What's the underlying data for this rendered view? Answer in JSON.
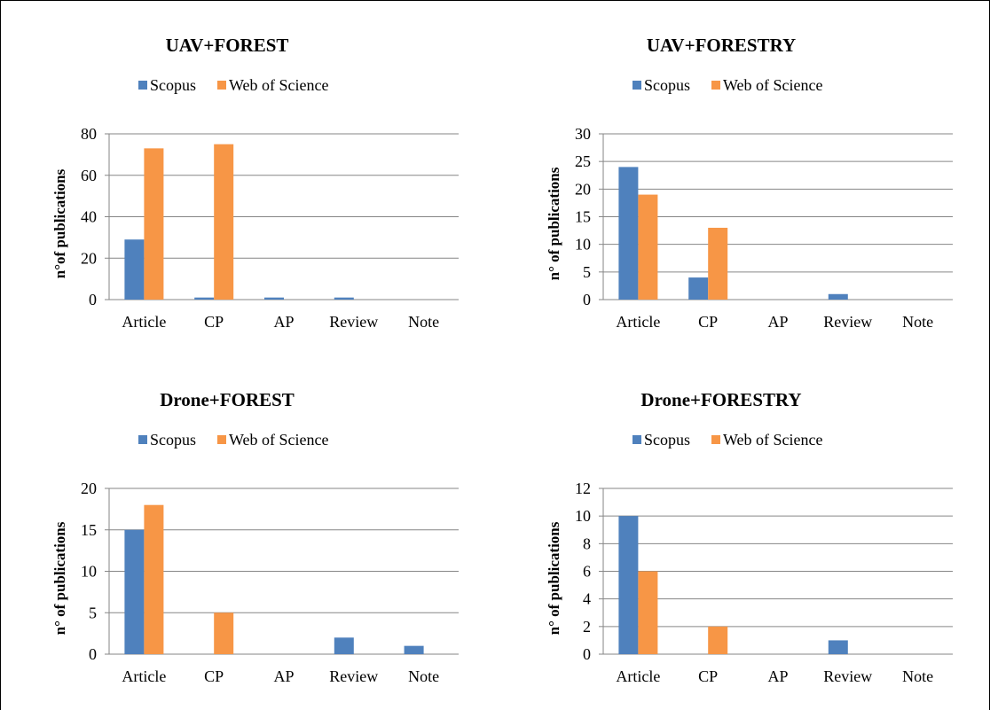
{
  "colors": {
    "scopus": "#4F81BD",
    "wos": "#F79646",
    "grid": "#868686",
    "axis": "#868686"
  },
  "chart_data": [
    {
      "type": "bar",
      "title": "UAV+FOREST",
      "ylabel": "n°of publications",
      "categories": [
        "Article",
        "CP",
        "AP",
        "Review",
        "Note"
      ],
      "yticks": [
        "0",
        "20",
        "40",
        "60",
        "80"
      ],
      "ylim": [
        0,
        80
      ],
      "grid": true,
      "legend_position": "top",
      "series": [
        {
          "name": "Scopus",
          "values": [
            29,
            1,
            1,
            1,
            0
          ]
        },
        {
          "name": "Web of Science",
          "values": [
            73,
            75,
            0,
            0,
            0
          ]
        }
      ]
    },
    {
      "type": "bar",
      "title": "UAV+FORESTRY",
      "ylabel": "n° of publications",
      "categories": [
        "Article",
        "CP",
        "AP",
        "Review",
        "Note"
      ],
      "yticks": [
        "0",
        "5",
        "10",
        "15",
        "20",
        "25",
        "30"
      ],
      "ylim": [
        0,
        30
      ],
      "grid": true,
      "legend_position": "top",
      "series": [
        {
          "name": "Scopus",
          "values": [
            24,
            4,
            0,
            1,
            0
          ]
        },
        {
          "name": "Web of Science",
          "values": [
            19,
            13,
            0,
            0,
            0
          ]
        }
      ]
    },
    {
      "type": "bar",
      "title": "Drone+FOREST",
      "ylabel": "n° of publications",
      "categories": [
        "Article",
        "CP",
        "AP",
        "Review",
        "Note"
      ],
      "yticks": [
        "0",
        "5",
        "10",
        "15",
        "20"
      ],
      "ylim": [
        0,
        20
      ],
      "grid": true,
      "legend_position": "top",
      "series": [
        {
          "name": "Scopus",
          "values": [
            15,
            0,
            0,
            2,
            1
          ]
        },
        {
          "name": "Web of Science",
          "values": [
            18,
            5,
            0,
            0,
            0
          ]
        }
      ]
    },
    {
      "type": "bar",
      "title": "Drone+FORESTRY",
      "ylabel": "n° of publications",
      "categories": [
        "Article",
        "CP",
        "AP",
        "Review",
        "Note"
      ],
      "yticks": [
        "0",
        "2",
        "4",
        "6",
        "8",
        "10",
        "12"
      ],
      "ylim": [
        0,
        12
      ],
      "grid": true,
      "legend_position": "top",
      "series": [
        {
          "name": "Scopus",
          "values": [
            10,
            0,
            0,
            1,
            0
          ]
        },
        {
          "name": "Web of Science",
          "values": [
            6,
            2,
            0,
            0,
            0
          ]
        }
      ]
    }
  ]
}
